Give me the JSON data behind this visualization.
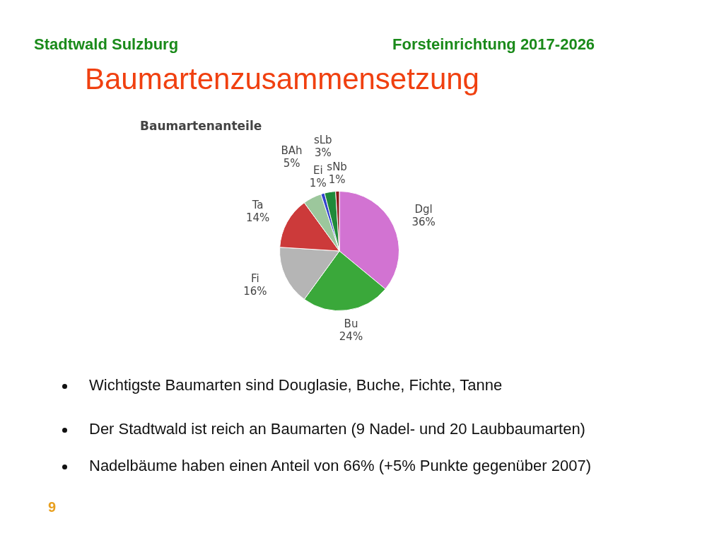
{
  "chart_data": {
    "type": "pie",
    "title": "Baumartenzusammensetzung",
    "subtitle": "Baumartenanteile",
    "categories": [
      "Dgl",
      "Bu",
      "Fi",
      "Ta",
      "BAh",
      "Ei",
      "sLb",
      "sNb"
    ],
    "values": [
      36,
      24,
      16,
      14,
      5,
      1,
      3,
      1
    ],
    "colors": [
      "#d273d2",
      "#3aa83a",
      "#b5b5b5",
      "#cc3a3a",
      "#9cc79c",
      "#3344cc",
      "#1f8a3a",
      "#8b1a1a"
    ],
    "value_labels": [
      "36%",
      "24%",
      "16%",
      "14%",
      "5%",
      "1%",
      "3%",
      "1%"
    ],
    "annotations": [
      "Stadtwald Sulzburg",
      "Forsteinrichtung 2017-2026",
      "Wichtigste Baumarten sind Douglasie, Buche, Fichte, Tanne",
      "Der Stadtwald ist reich an Baumarten (9 Nadel- und 20 Laubbaumarten)",
      "Nadelbäume haben einen Anteil von 66% (+5% Punkte gegenüber 2007)",
      "9"
    ]
  }
}
